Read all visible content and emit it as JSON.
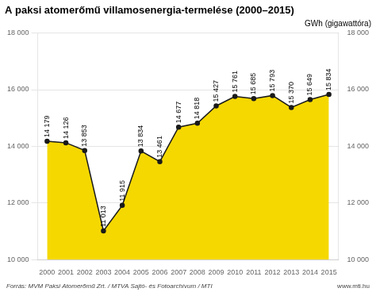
{
  "chart_data": {
    "type": "area",
    "title": "A paksi atomerőmű villamosenergia-termelése (2000–2015)",
    "ylabel": "GWh (gigawattóra)",
    "annotations": [
      "Forrás: MVM Paksi Atomerőmű Zrt. / MTVA Sajtó- és Fotoarchívum / MTI",
      "www.mti.hu"
    ],
    "x": [
      2000,
      2001,
      2002,
      2003,
      2004,
      2005,
      2006,
      2007,
      2008,
      2009,
      2010,
      2011,
      2012,
      2013,
      2014,
      2015
    ],
    "values": [
      14179,
      14126,
      13853,
      11013,
      11915,
      13834,
      13461,
      14677,
      14818,
      15427,
      15761,
      15685,
      15793,
      15370,
      15649,
      15834
    ],
    "value_labels": [
      "14 179",
      "14 126",
      "13 853",
      "11 013",
      "11 915",
      "13 834",
      "13 461",
      "14 677",
      "14 818",
      "15 427",
      "15 761",
      "15 685",
      "15 793",
      "15 370",
      "15 649",
      "15 834"
    ],
    "data_labels": true,
    "color": "#F5D800",
    "marker": "circle",
    "xlim": [
      1999.5,
      2015.5
    ],
    "xticks": [
      2000,
      2001,
      2002,
      2003,
      2004,
      2005,
      2006,
      2007,
      2008,
      2009,
      2010,
      2011,
      2012,
      2013,
      2014,
      2015
    ],
    "ylim": [
      10000,
      18000
    ],
    "yticks": [
      {
        "value": 10000,
        "label": "10 000"
      },
      {
        "value": 12000,
        "label": "12 000"
      },
      {
        "value": 14000,
        "label": "14 000"
      },
      {
        "value": 16000,
        "label": "16 000"
      },
      {
        "value": 18000,
        "label": "18 000"
      }
    ],
    "y2lim": [
      10000,
      18000
    ],
    "y2ticks": [
      {
        "value": 10000,
        "label": "10 000"
      },
      {
        "value": 12000,
        "label": "12 000"
      },
      {
        "value": 14000,
        "label": "14 000"
      },
      {
        "value": 16000,
        "label": "16 000"
      },
      {
        "value": 18000,
        "label": "18 000"
      }
    ],
    "grid": true
  }
}
